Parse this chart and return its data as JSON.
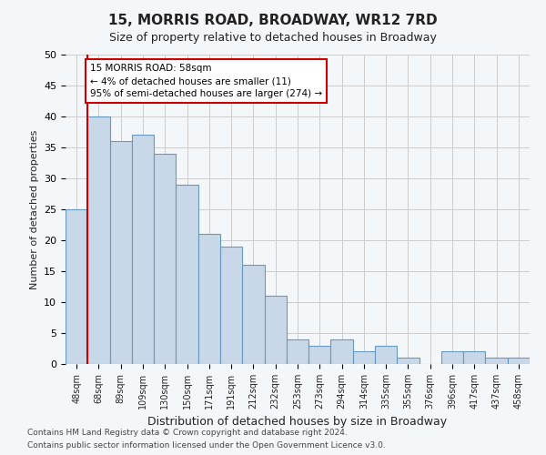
{
  "title": "15, MORRIS ROAD, BROADWAY, WR12 7RD",
  "subtitle": "Size of property relative to detached houses in Broadway",
  "xlabel": "Distribution of detached houses by size in Broadway",
  "ylabel": "Number of detached properties",
  "bar_labels": [
    "48sqm",
    "68sqm",
    "89sqm",
    "109sqm",
    "130sqm",
    "150sqm",
    "171sqm",
    "191sqm",
    "212sqm",
    "232sqm",
    "253sqm",
    "273sqm",
    "294sqm",
    "314sqm",
    "335sqm",
    "355sqm",
    "376sqm",
    "396sqm",
    "417sqm",
    "437sqm",
    "458sqm"
  ],
  "bar_values": [
    25,
    40,
    36,
    37,
    34,
    29,
    21,
    19,
    16,
    11,
    4,
    3,
    4,
    2,
    3,
    1,
    0,
    2,
    2,
    1,
    1
  ],
  "bar_color": "#c8d8e8",
  "bar_edge_color": "#6699bb",
  "highlight_line_color": "#cc0000",
  "annotation_text": "15 MORRIS ROAD: 58sqm\n← 4% of detached houses are smaller (11)\n95% of semi-detached houses are larger (274) →",
  "annotation_box_color": "#ffffff",
  "annotation_box_edge": "#cc0000",
  "ylim": [
    0,
    50
  ],
  "yticks": [
    0,
    5,
    10,
    15,
    20,
    25,
    30,
    35,
    40,
    45,
    50
  ],
  "footer_line1": "Contains HM Land Registry data © Crown copyright and database right 2024.",
  "footer_line2": "Contains public sector information licensed under the Open Government Licence v3.0.",
  "bg_color": "#f4f7fa",
  "plot_bg_color": "#f4f7fa",
  "grid_color": "#cccccc"
}
